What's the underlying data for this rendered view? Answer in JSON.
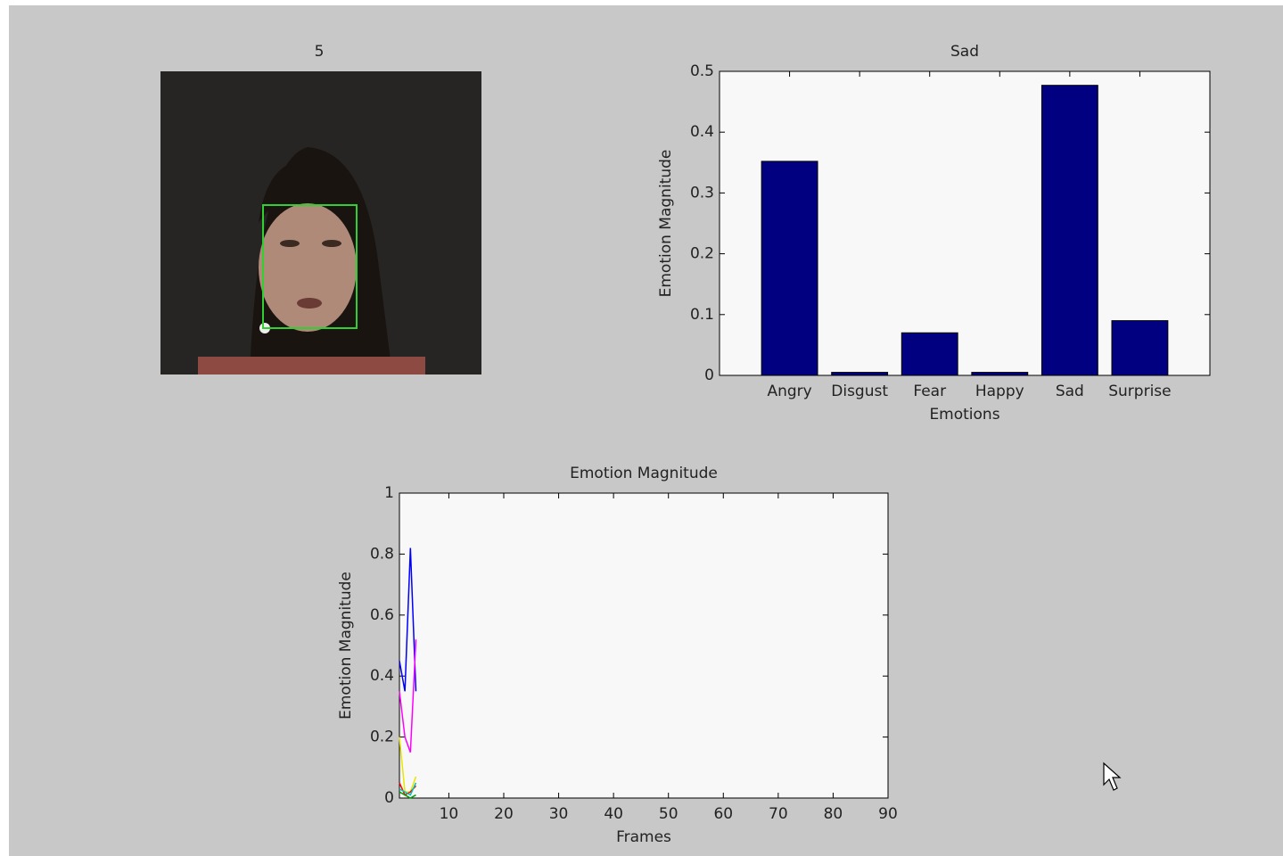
{
  "frame": {
    "title": "5"
  },
  "chart_data": [
    {
      "type": "bar",
      "title": "Sad",
      "x_label": "Emotions",
      "y_label": "Emotion Magnitude",
      "categories": [
        "Angry",
        "Disgust",
        "Fear",
        "Happy",
        "Sad",
        "Surprise"
      ],
      "values": [
        0.352,
        0.005,
        0.07,
        0.005,
        0.477,
        0.09
      ],
      "color": "#000080",
      "ylim": [
        0,
        0.5
      ],
      "yticks": [
        0,
        0.1,
        0.2,
        0.3,
        0.4,
        0.5
      ],
      "grid": false
    },
    {
      "type": "line",
      "title": "Emotion Magnitude",
      "x_label": "Frames",
      "y_label": "Emotion Magnitude",
      "x": [
        1,
        2,
        3,
        4
      ],
      "series": [
        {
          "color": "#0000ff",
          "values": [
            0.45,
            0.35,
            0.82,
            0.35
          ]
        },
        {
          "color": "#ff00ff",
          "values": [
            0.35,
            0.2,
            0.15,
            0.52
          ]
        },
        {
          "color": "#e6e600",
          "values": [
            0.2,
            0.02,
            0.02,
            0.07
          ]
        },
        {
          "color": "#ff0000",
          "values": [
            0.05,
            0.01,
            0.02,
            0.04
          ]
        },
        {
          "color": "#00a000",
          "values": [
            0.02,
            0.01,
            0.0,
            0.01
          ]
        },
        {
          "color": "#00c0c0",
          "values": [
            0.03,
            0.02,
            0.01,
            0.05
          ]
        }
      ],
      "xlim": [
        1,
        90
      ],
      "xticks": [
        10,
        20,
        30,
        40,
        50,
        60,
        70,
        80,
        90
      ],
      "ylim": [
        0,
        1
      ],
      "yticks": [
        0,
        0.2,
        0.4,
        0.6,
        0.8,
        1
      ],
      "grid": false
    }
  ]
}
